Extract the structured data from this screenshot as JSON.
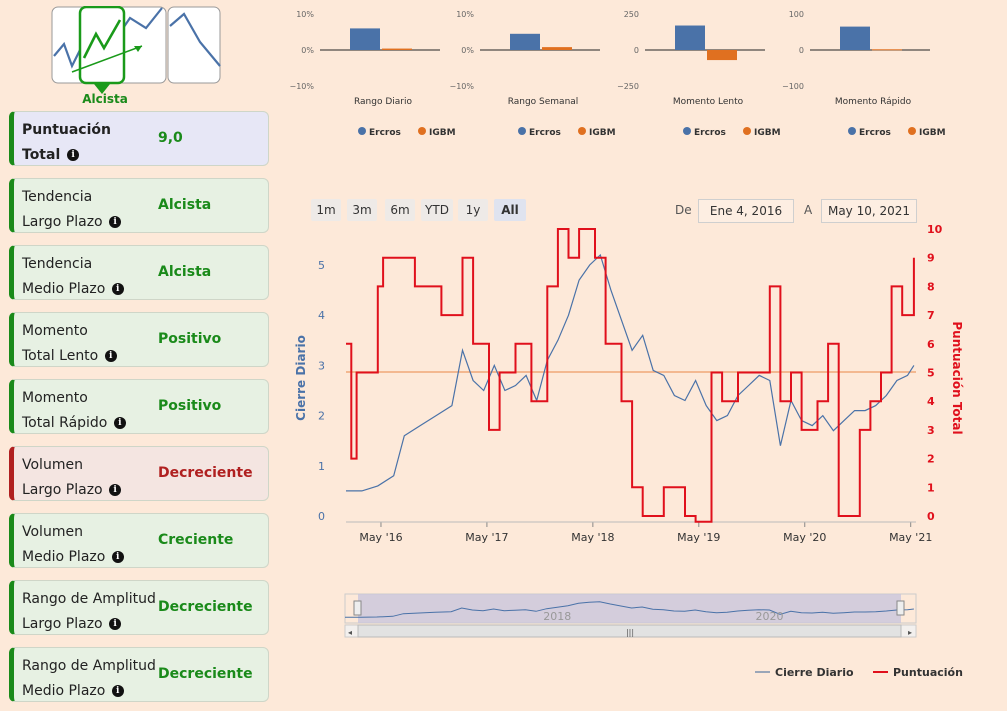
{
  "trend": {
    "label": "Alcista"
  },
  "cards": [
    {
      "l1": "Puntuación",
      "l2": "Total",
      "value": "9,0",
      "style": "blue",
      "bold": true
    },
    {
      "l1": "Tendencia",
      "l2": "Largo Plazo",
      "value": "Alcista",
      "style": "green",
      "bold": false
    },
    {
      "l1": "Tendencia",
      "l2": "Medio Plazo",
      "value": "Alcista",
      "style": "green",
      "bold": false
    },
    {
      "l1": "Momento",
      "l2": "Total Lento",
      "value": "Positivo",
      "style": "green",
      "bold": false
    },
    {
      "l1": "Momento",
      "l2": "Total Rápido",
      "value": "Positivo",
      "style": "green",
      "bold": false
    },
    {
      "l1": "Volumen",
      "l2": "Largo Plazo",
      "value": "Decreciente",
      "style": "red",
      "bold": false
    },
    {
      "l1": "Volumen",
      "l2": "Medio Plazo",
      "value": "Creciente",
      "style": "green",
      "bold": false
    },
    {
      "l1": "Rango de Amplitud",
      "l2": "Largo Plazo",
      "value": "Decreciente",
      "style": "green",
      "bold": false
    },
    {
      "l1": "Rango de Amplitud",
      "l2": "Medio Plazo",
      "value": "Decreciente",
      "style": "green",
      "bold": false
    }
  ],
  "range": {
    "buttons": [
      "1m",
      "3m",
      "6m",
      "YTD",
      "1y",
      "All"
    ],
    "active": "All",
    "from_label": "De",
    "to_label": "A",
    "from_date": "Ene 4, 2016",
    "to_date": "May 10, 2021"
  },
  "colors": {
    "ercros": "#4a72a8",
    "igbm": "#e07020",
    "close": "#4a72a8",
    "score": "#e0101c"
  },
  "chart_data": [
    {
      "type": "bar",
      "title": "Rango Diario",
      "categories": [
        "Ercros",
        "IGBM"
      ],
      "values": [
        6,
        0.4
      ],
      "ylim": [
        -10,
        10
      ],
      "ticks": [
        "10%",
        "0%",
        "−10%"
      ]
    },
    {
      "type": "bar",
      "title": "Rango Semanal",
      "categories": [
        "Ercros",
        "IGBM"
      ],
      "values": [
        4.5,
        0.8
      ],
      "ylim": [
        -10,
        10
      ],
      "ticks": [
        "10%",
        "0%",
        "−10%"
      ]
    },
    {
      "type": "bar",
      "title": "Momento Lento",
      "categories": [
        "Ercros",
        "IGBM"
      ],
      "values": [
        170,
        -70
      ],
      "ylim": [
        -250,
        250
      ],
      "ticks": [
        "250",
        "0",
        "−250"
      ]
    },
    {
      "type": "bar",
      "title": "Momento Rápido",
      "categories": [
        "Ercros",
        "IGBM"
      ],
      "values": [
        65,
        2
      ],
      "ylim": [
        -100,
        100
      ],
      "ticks": [
        "100",
        "0",
        "−100"
      ]
    },
    {
      "type": "line",
      "title": "",
      "xlabel": "",
      "ylabel": "Cierre Diario",
      "y2label": "Puntuación Total",
      "x_ticks": [
        "May '16",
        "May '17",
        "May '18",
        "May '19",
        "May '20",
        "May '21"
      ],
      "ylim": [
        0,
        5.5
      ],
      "y_ticks": [
        "0",
        "1",
        "2",
        "3",
        "4",
        "5"
      ],
      "y2lim": [
        0,
        10
      ],
      "y2_ticks": [
        "0",
        "1",
        "2",
        "3",
        "4",
        "5",
        "6",
        "7",
        "8",
        "9",
        "10"
      ],
      "reference_y2": 5,
      "navigator_labels": [
        "2018",
        "2020"
      ],
      "series": [
        {
          "name": "Cierre Diario",
          "x": [
            2016.0,
            2016.15,
            2016.3,
            2016.45,
            2016.55,
            2016.7,
            2016.85,
            2017.0,
            2017.1,
            2017.2,
            2017.3,
            2017.4,
            2017.5,
            2017.6,
            2017.7,
            2017.8,
            2017.9,
            2018.0,
            2018.1,
            2018.2,
            2018.3,
            2018.4,
            2018.5,
            2018.6,
            2018.7,
            2018.8,
            2018.9,
            2019.0,
            2019.1,
            2019.2,
            2019.3,
            2019.4,
            2019.5,
            2019.6,
            2019.7,
            2019.8,
            2019.9,
            2020.0,
            2020.1,
            2020.2,
            2020.3,
            2020.4,
            2020.5,
            2020.6,
            2020.7,
            2020.8,
            2020.9,
            2021.0,
            2021.1,
            2021.2,
            2021.3,
            2021.36
          ],
          "values": [
            0.5,
            0.5,
            0.6,
            0.8,
            1.6,
            1.8,
            2.0,
            2.2,
            3.3,
            2.7,
            2.5,
            3.0,
            2.5,
            2.6,
            2.8,
            2.3,
            3.1,
            3.5,
            4.0,
            4.7,
            5.0,
            5.2,
            4.5,
            3.9,
            3.3,
            3.6,
            2.9,
            2.8,
            2.4,
            2.3,
            2.7,
            2.2,
            1.9,
            2.0,
            2.4,
            2.6,
            2.8,
            2.7,
            1.4,
            2.3,
            1.9,
            1.8,
            2.0,
            1.7,
            1.9,
            2.1,
            2.1,
            2.2,
            2.4,
            2.7,
            2.8,
            3.0
          ]
        },
        {
          "name": "Puntuación",
          "x": [
            2016.0,
            2016.05,
            2016.1,
            2016.2,
            2016.3,
            2016.35,
            2016.5,
            2016.65,
            2016.9,
            2017.0,
            2017.1,
            2017.2,
            2017.35,
            2017.45,
            2017.6,
            2017.75,
            2017.9,
            2018.0,
            2018.1,
            2018.2,
            2018.35,
            2018.45,
            2018.6,
            2018.7,
            2018.8,
            2019.0,
            2019.1,
            2019.2,
            2019.3,
            2019.45,
            2019.55,
            2019.7,
            2019.85,
            2020.0,
            2020.1,
            2020.2,
            2020.3,
            2020.45,
            2020.55,
            2020.65,
            2020.75,
            2020.85,
            2020.95,
            2021.05,
            2021.15,
            2021.25,
            2021.36
          ],
          "values": [
            6,
            2,
            5,
            5,
            8,
            9,
            9,
            8,
            7,
            7,
            9,
            6,
            3,
            5,
            6,
            4,
            8,
            10,
            9,
            10,
            9,
            6,
            4,
            1,
            0,
            1,
            1,
            0,
            -0.2,
            5,
            4,
            5,
            5,
            8,
            4,
            5,
            3,
            4,
            6,
            0,
            0,
            3,
            4,
            5,
            8,
            7,
            9
          ]
        }
      ]
    }
  ],
  "legend": {
    "close": "Cierre Diario",
    "score": "Puntuación"
  }
}
